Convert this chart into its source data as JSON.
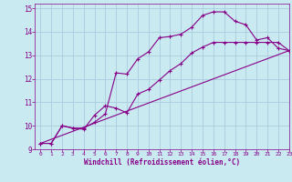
{
  "background_color": "#c8eaf0",
  "grid_color": "#aaccdd",
  "line_color": "#880088",
  "marker_color": "#880088",
  "xlabel": "Windchill (Refroidissement éolien,°C)",
  "xlim": [
    -0.5,
    23
  ],
  "ylim": [
    9,
    15.2
  ],
  "yticks": [
    9,
    10,
    11,
    12,
    13,
    14,
    15
  ],
  "xticks": [
    0,
    1,
    2,
    3,
    4,
    5,
    6,
    7,
    8,
    9,
    10,
    11,
    12,
    13,
    14,
    15,
    16,
    17,
    18,
    19,
    20,
    21,
    22,
    23
  ],
  "line1_x": [
    0,
    1,
    2,
    3,
    4,
    5,
    6,
    7,
    8,
    9,
    10,
    11,
    12,
    13,
    14,
    15,
    16,
    17,
    18,
    19,
    20,
    21,
    22,
    23
  ],
  "line1_y": [
    9.25,
    9.25,
    10.0,
    9.9,
    9.9,
    10.15,
    10.5,
    12.25,
    12.2,
    12.85,
    13.15,
    13.75,
    13.8,
    13.9,
    14.2,
    14.7,
    14.85,
    14.85,
    14.45,
    14.3,
    13.65,
    13.75,
    13.3,
    13.2
  ],
  "line2_x": [
    0,
    1,
    2,
    3,
    4,
    5,
    6,
    7,
    8,
    9,
    10,
    11,
    12,
    13,
    14,
    15,
    16,
    17,
    18,
    19,
    20,
    21,
    22,
    23
  ],
  "line2_y": [
    9.25,
    9.25,
    10.0,
    9.9,
    9.85,
    10.45,
    10.85,
    10.75,
    10.55,
    11.35,
    11.55,
    11.95,
    12.35,
    12.65,
    13.1,
    13.35,
    13.55,
    13.55,
    13.55,
    13.55,
    13.55,
    13.55,
    13.55,
    13.2
  ],
  "line3_x": [
    0,
    23
  ],
  "line3_y": [
    9.25,
    13.2
  ]
}
